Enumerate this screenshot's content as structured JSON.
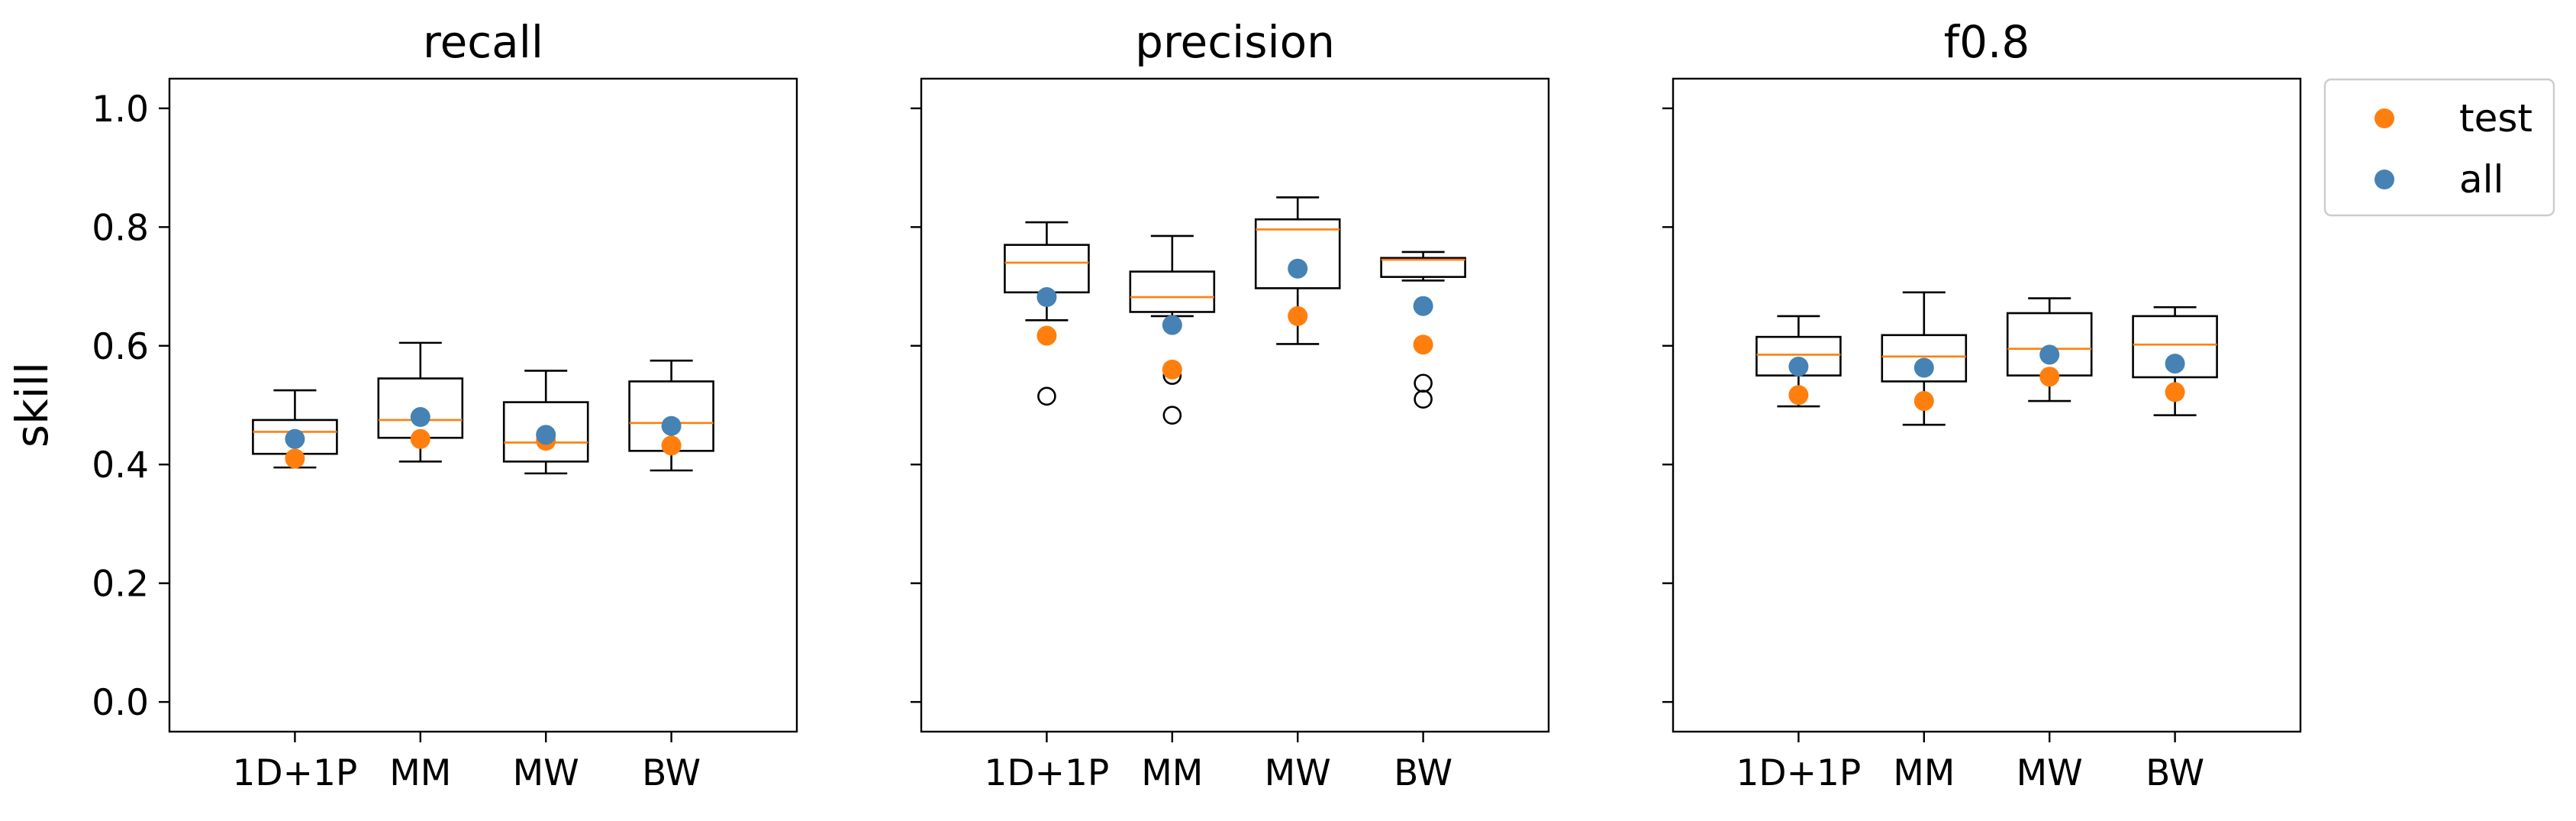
{
  "chart_data": {
    "type": "boxplot",
    "ylabel": "skill",
    "ylim": [
      -0.05,
      1.05
    ],
    "yticks": [
      0.0,
      0.2,
      0.4,
      0.6,
      0.8,
      1.0
    ],
    "ytick_labels": [
      "0.0",
      "0.2",
      "0.4",
      "0.6",
      "0.8",
      "1.0"
    ],
    "categories": [
      "1D+1P",
      "MM",
      "MW",
      "BW"
    ],
    "legend": {
      "placement": "outside-top-right",
      "entries": [
        {
          "name": "test",
          "color": "#ff7f0e"
        },
        {
          "name": "all",
          "color": "#4682b4"
        }
      ]
    },
    "colors": {
      "median": "#ff7f0e",
      "test": "#ff7f0e",
      "all": "#4682b4",
      "box": "#000000"
    },
    "panels": [
      {
        "title": "recall",
        "show_ytick_labels": true,
        "boxes": [
          {
            "whisker_low": 0.395,
            "q1": 0.418,
            "median": 0.455,
            "q3": 0.475,
            "whisker_high": 0.525,
            "outliers": []
          },
          {
            "whisker_low": 0.405,
            "q1": 0.445,
            "median": 0.475,
            "q3": 0.545,
            "whisker_high": 0.605,
            "outliers": []
          },
          {
            "whisker_low": 0.385,
            "q1": 0.405,
            "median": 0.437,
            "q3": 0.505,
            "whisker_high": 0.558,
            "outliers": []
          },
          {
            "whisker_low": 0.39,
            "q1": 0.423,
            "median": 0.47,
            "q3": 0.54,
            "whisker_high": 0.575,
            "outliers": []
          }
        ],
        "test": [
          0.41,
          0.443,
          0.44,
          0.432
        ],
        "all": [
          0.443,
          0.48,
          0.45,
          0.465
        ]
      },
      {
        "title": "precision",
        "show_ytick_labels": false,
        "boxes": [
          {
            "whisker_low": 0.643,
            "q1": 0.69,
            "median": 0.74,
            "q3": 0.77,
            "whisker_high": 0.808,
            "outliers": [
              0.515
            ]
          },
          {
            "whisker_low": 0.65,
            "q1": 0.657,
            "median": 0.682,
            "q3": 0.725,
            "whisker_high": 0.785,
            "outliers": [
              0.55,
              0.483
            ]
          },
          {
            "whisker_low": 0.603,
            "q1": 0.697,
            "median": 0.796,
            "q3": 0.813,
            "whisker_high": 0.85,
            "outliers": []
          },
          {
            "whisker_low": 0.71,
            "q1": 0.716,
            "median": 0.745,
            "q3": 0.748,
            "whisker_high": 0.758,
            "outliers": [
              0.537,
              0.51
            ]
          }
        ],
        "test": [
          0.617,
          0.56,
          0.65,
          0.602
        ],
        "all": [
          0.682,
          0.635,
          0.73,
          0.667
        ]
      },
      {
        "title": "f0.8",
        "show_ytick_labels": false,
        "boxes": [
          {
            "whisker_low": 0.498,
            "q1": 0.55,
            "median": 0.585,
            "q3": 0.615,
            "whisker_high": 0.65,
            "outliers": []
          },
          {
            "whisker_low": 0.467,
            "q1": 0.54,
            "median": 0.582,
            "q3": 0.618,
            "whisker_high": 0.69,
            "outliers": []
          },
          {
            "whisker_low": 0.507,
            "q1": 0.55,
            "median": 0.595,
            "q3": 0.655,
            "whisker_high": 0.68,
            "outliers": []
          },
          {
            "whisker_low": 0.483,
            "q1": 0.547,
            "median": 0.602,
            "q3": 0.65,
            "whisker_high": 0.665,
            "outliers": []
          }
        ],
        "test": [
          0.517,
          0.507,
          0.548,
          0.522
        ],
        "all": [
          0.565,
          0.563,
          0.585,
          0.57
        ]
      }
    ]
  }
}
